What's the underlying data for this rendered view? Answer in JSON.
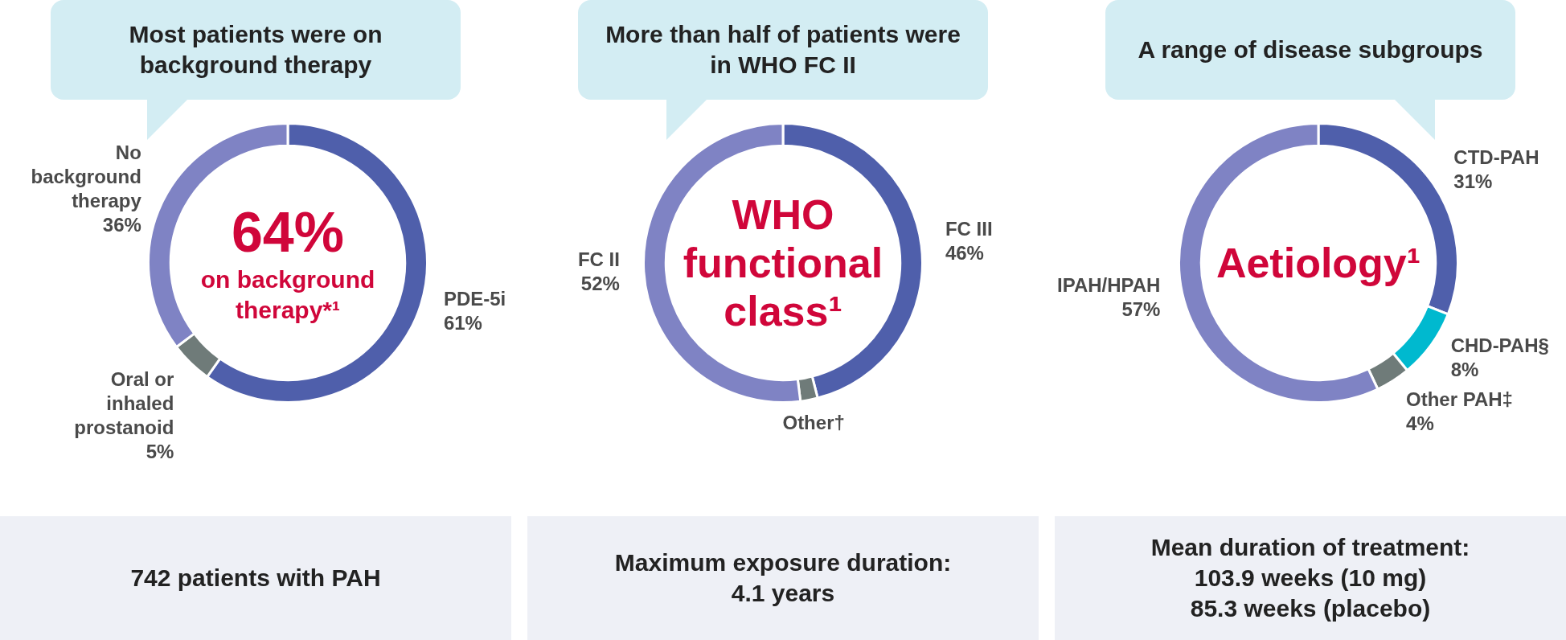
{
  "chart_data": [
    {
      "type": "donut",
      "title": "Most patients were on background therapy",
      "categories": [
        "PDE-5i",
        "Oral or inhaled prostanoid",
        "No background therapy"
      ],
      "values": [
        61,
        5,
        36
      ],
      "colors": [
        "#4f5fab",
        "#6f7b79",
        "#7f83c4"
      ],
      "value_labels": [
        "61%",
        "5%",
        "36%"
      ],
      "annotations": [
        "64%\non background therapy*¹",
        "742 patients with PAH"
      ],
      "legend": false
    },
    {
      "type": "donut",
      "title": "More than half of patients were in WHO FC II",
      "categories": [
        "FC III",
        "Other†",
        "FC II"
      ],
      "values": [
        46,
        2,
        52
      ],
      "colors": [
        "#4f5fab",
        "#6f7b79",
        "#7f83c4"
      ],
      "value_labels": [
        "46%",
        null,
        "52%"
      ],
      "annotations": [
        "WHO functional class¹",
        "Maximum exposure duration:\n4.1 years"
      ],
      "legend": false
    },
    {
      "type": "donut",
      "title": "A range of disease subgroups",
      "categories": [
        "CTD-PAH",
        "CHD-PAH§",
        "Other PAH‡",
        "IPAH/HPAH"
      ],
      "values": [
        31,
        8,
        4,
        57
      ],
      "colors": [
        "#4f5fab",
        "#00b9cf",
        "#6f7b79",
        "#7f83c4"
      ],
      "value_labels": [
        "31%",
        "8%",
        "4%",
        "57%"
      ],
      "annotations": [
        "Aetiology¹",
        "Mean duration of treatment:\n103.9 weeks (10 mg)\n85.3 weeks (placebo)"
      ],
      "legend": false
    }
  ]
}
